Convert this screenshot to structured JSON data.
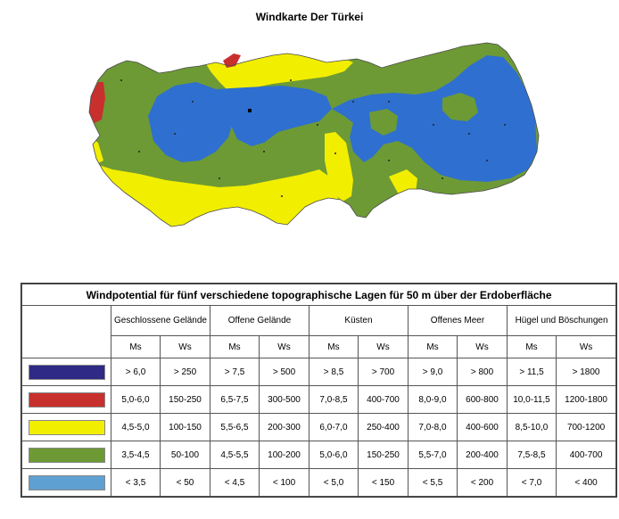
{
  "map_title": "Windkarte Der Türkei",
  "table": {
    "caption": "Windpotential für fünf verschiedene topographische Lagen für 50 m über der Erdoberfläche",
    "groups": [
      "Geschlossene Gelände",
      "Offene Gelände",
      "Küsten",
      "Offenes Meer",
      "Hügel und Böschungen"
    ],
    "sub_headers": [
      "Ms",
      "Ws"
    ],
    "rows": [
      {
        "color": "#2e2a86",
        "cells": [
          "> 6,0",
          "> 250",
          "> 7,5",
          "> 500",
          "> 8,5",
          "> 700",
          "> 9,0",
          "> 800",
          "> 11,5",
          "> 1800"
        ]
      },
      {
        "color": "#c8302e",
        "cells": [
          "5,0-6,0",
          "150-250",
          "6,5-7,5",
          "300-500",
          "7,0-8,5",
          "400-700",
          "8,0-9,0",
          "600-800",
          "10,0-11,5",
          "1200-1800"
        ]
      },
      {
        "color": "#f2ee00",
        "cells": [
          "4,5-5,0",
          "100-150",
          "5,5-6,5",
          "200-300",
          "6,0-7,0",
          "250-400",
          "7,0-8,0",
          "400-600",
          "8,5-10,0",
          "700-1200"
        ]
      },
      {
        "color": "#6d9a35",
        "cells": [
          "3,5-4,5",
          "50-100",
          "4,5-5,5",
          "100-200",
          "5,0-6,0",
          "150-250",
          "5,5-7,0",
          "200-400",
          "7,5-8,5",
          "400-700"
        ]
      },
      {
        "color": "#5fa0d2",
        "cells": [
          "< 3,5",
          "< 50",
          "< 4,5",
          "< 100",
          "< 5,0",
          "< 150",
          "< 5,5",
          "< 200",
          "< 7,0",
          "< 400"
        ]
      }
    ]
  },
  "map_colors": {
    "blue": "#2f6fd0",
    "green": "#6d9a35",
    "yellow": "#f2ee00",
    "red": "#c8302e",
    "sea": "#ffffff"
  }
}
